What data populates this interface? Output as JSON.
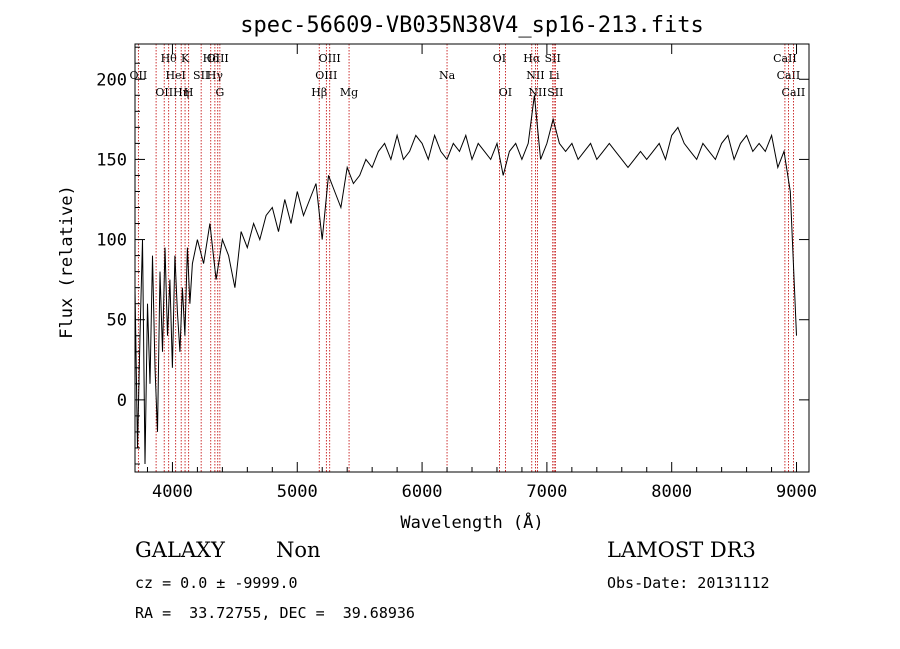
{
  "chart_data": {
    "type": "line",
    "title": "spec-56609-VB035N38V4_sp16-213.fits",
    "xlabel": "Wavelength (Å)",
    "ylabel": "Flux (relative)",
    "xlim": [
      3700,
      9100
    ],
    "ylim": [
      -45,
      222
    ],
    "xticks": [
      4000,
      5000,
      6000,
      7000,
      8000,
      9000
    ],
    "yticks": [
      0,
      50,
      100,
      150,
      200
    ],
    "spectrum": {
      "x": [
        3700,
        3720,
        3740,
        3760,
        3780,
        3800,
        3820,
        3840,
        3860,
        3880,
        3900,
        3920,
        3940,
        3960,
        3980,
        4000,
        4020,
        4040,
        4060,
        4080,
        4100,
        4120,
        4140,
        4160,
        4200,
        4250,
        4300,
        4350,
        4400,
        4450,
        4500,
        4550,
        4600,
        4650,
        4700,
        4750,
        4800,
        4850,
        4900,
        4950,
        5000,
        5050,
        5100,
        5150,
        5200,
        5250,
        5300,
        5350,
        5400,
        5450,
        5500,
        5550,
        5600,
        5650,
        5700,
        5750,
        5800,
        5850,
        5900,
        5950,
        6000,
        6050,
        6100,
        6150,
        6200,
        6250,
        6300,
        6350,
        6400,
        6450,
        6500,
        6550,
        6600,
        6650,
        6700,
        6750,
        6800,
        6850,
        6900,
        6950,
        7000,
        7050,
        7100,
        7150,
        7200,
        7250,
        7300,
        7350,
        7400,
        7450,
        7500,
        7550,
        7600,
        7650,
        7700,
        7750,
        7800,
        7850,
        7900,
        7950,
        8000,
        8050,
        8100,
        8150,
        8200,
        8250,
        8300,
        8350,
        8400,
        8450,
        8500,
        8550,
        8600,
        8650,
        8700,
        8750,
        8800,
        8850,
        8900,
        8950,
        9000
      ],
      "y": [
        70,
        -30,
        40,
        100,
        -40,
        60,
        10,
        90,
        20,
        -20,
        80,
        30,
        95,
        40,
        75,
        20,
        90,
        55,
        30,
        70,
        40,
        95,
        60,
        85,
        100,
        85,
        110,
        75,
        100,
        90,
        70,
        105,
        95,
        110,
        100,
        115,
        120,
        105,
        125,
        110,
        130,
        115,
        125,
        135,
        100,
        140,
        130,
        120,
        145,
        135,
        140,
        150,
        145,
        155,
        160,
        150,
        165,
        150,
        155,
        165,
        160,
        150,
        165,
        155,
        150,
        160,
        155,
        165,
        150,
        160,
        155,
        150,
        160,
        140,
        155,
        160,
        150,
        160,
        190,
        150,
        160,
        175,
        160,
        155,
        160,
        150,
        155,
        160,
        150,
        155,
        160,
        155,
        150,
        145,
        150,
        155,
        150,
        155,
        160,
        150,
        165,
        170,
        160,
        155,
        150,
        160,
        155,
        150,
        160,
        165,
        150,
        160,
        165,
        155,
        160,
        155,
        165,
        145,
        155,
        130,
        40
      ]
    },
    "lines": [
      {
        "w": 3727,
        "label": "OII",
        "row": 1
      },
      {
        "w": 3869,
        "label": "",
        "row": 0
      },
      {
        "w": 3934,
        "label": "OII",
        "row": 2
      },
      {
        "w": 3970,
        "label": "Hθ",
        "row": 0
      },
      {
        "w": 4026,
        "label": "HeI",
        "row": 1
      },
      {
        "w": 4070,
        "label": "Hη",
        "row": 2
      },
      {
        "w": 4101,
        "label": "K",
        "row": 0
      },
      {
        "w": 4130,
        "label": "H",
        "row": 2
      },
      {
        "w": 4230,
        "label": "SII",
        "row": 1
      },
      {
        "w": 4307,
        "label": "Hδ",
        "row": 0
      },
      {
        "w": 4340,
        "label": "Hγ",
        "row": 1
      },
      {
        "w": 4363,
        "label": "OIII",
        "row": 0
      },
      {
        "w": 4380,
        "label": "G",
        "row": 2
      },
      {
        "w": 5176,
        "label": "Hβ",
        "row": 2
      },
      {
        "w": 5233,
        "label": "OIII",
        "row": 1
      },
      {
        "w": 5260,
        "label": "OIII",
        "row": 0
      },
      {
        "w": 5415,
        "label": "Mg",
        "row": 2
      },
      {
        "w": 6200,
        "label": "Na",
        "row": 1
      },
      {
        "w": 6620,
        "label": "OI",
        "row": 0
      },
      {
        "w": 6668,
        "label": "OI",
        "row": 2
      },
      {
        "w": 6879,
        "label": "Hα",
        "row": 0
      },
      {
        "w": 6908,
        "label": "NII",
        "row": 1
      },
      {
        "w": 6925,
        "label": "NII",
        "row": 2
      },
      {
        "w": 7047,
        "label": "SII",
        "row": 0
      },
      {
        "w": 7058,
        "label": "Li",
        "row": 1
      },
      {
        "w": 7068,
        "label": "SII",
        "row": 2
      },
      {
        "w": 8907,
        "label": "CaII",
        "row": 0
      },
      {
        "w": 8935,
        "label": "CaII",
        "row": 1
      },
      {
        "w": 8975,
        "label": "CaII",
        "row": 2
      }
    ]
  },
  "info": {
    "class": "GALAXY",
    "subclass": "Non",
    "survey": "LAMOST DR3",
    "cz": "cz = 0.0 ± -9999.0",
    "obs_date": "Obs-Date: 20131112",
    "coords": "RA =  33.72755, DEC =  39.68936"
  },
  "colors": {
    "axis": "#000000",
    "spectrum": "#000000",
    "lines": "#c00000"
  }
}
